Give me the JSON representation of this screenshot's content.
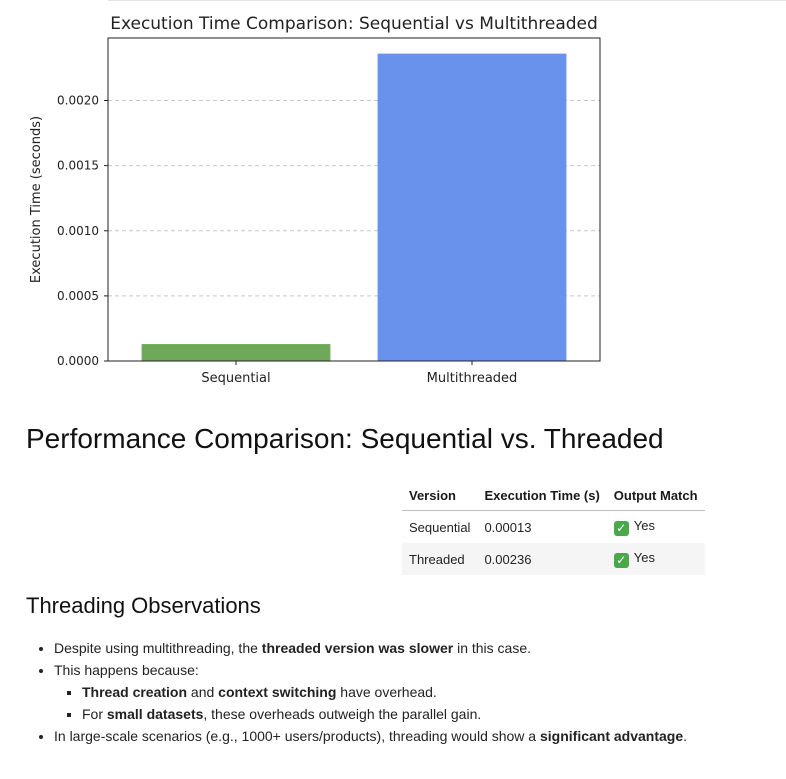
{
  "chart_data": {
    "type": "bar",
    "title": "Execution Time Comparison: Sequential vs Multithreaded",
    "categories": [
      "Sequential",
      "Multithreaded"
    ],
    "values": [
      0.00013,
      0.00236
    ],
    "colors": [
      "#70a85a",
      "#6892eb"
    ],
    "xlabel": "",
    "ylabel": "Execution Time (seconds)",
    "ylim": [
      0,
      0.00248
    ],
    "yticks": [
      0.0,
      0.0005,
      0.001,
      0.0015,
      0.002
    ],
    "ytick_labels": [
      "0.0000",
      "0.0005",
      "0.0010",
      "0.0015",
      "0.0020"
    ],
    "grid": "horizontal dashed"
  },
  "comparison": {
    "heading": "Performance Comparison: Sequential vs. Threaded",
    "columns": [
      "Version",
      "Execution Time (s)",
      "Output Match"
    ],
    "rows": [
      {
        "version": "Sequential",
        "time": "0.00013",
        "match": "Yes"
      },
      {
        "version": "Threaded",
        "time": "0.00236",
        "match": "Yes"
      }
    ],
    "check_icon": "✓"
  },
  "observations": {
    "heading": "Threading Observations",
    "b1": {
      "pre": "Despite using multithreading, the ",
      "bold": "threaded version was slower",
      "post": " in this case."
    },
    "b2": {
      "text": "This happens because:"
    },
    "s1": {
      "bold1": "Thread creation",
      "mid": " and ",
      "bold2": "context switching",
      "post": " have overhead."
    },
    "s2": {
      "pre": "For ",
      "bold": "small datasets",
      "post": ", these overheads outweigh the parallel gain."
    },
    "b3": {
      "pre": "In large-scale scenarios (e.g., 1000+ users/products), threading would show a ",
      "bold": "significant advantage",
      "post": "."
    }
  }
}
